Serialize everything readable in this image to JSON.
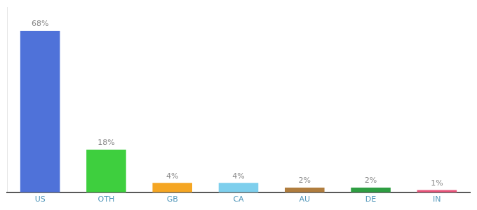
{
  "chart_data": {
    "type": "bar",
    "categories": [
      "US",
      "OTH",
      "GB",
      "CA",
      "AU",
      "DE",
      "IN"
    ],
    "values": [
      68,
      18,
      4,
      4,
      2,
      2,
      1
    ],
    "value_labels": [
      "68%",
      "18%",
      "4%",
      "4%",
      "2%",
      "2%",
      "1%"
    ],
    "data_labels": true,
    "colors": [
      "#4f72d9",
      "#3ecf3e",
      "#f5a623",
      "#7ecfed",
      "#b07d3e",
      "#2e9e42",
      "#e8557a"
    ],
    "ylim": [
      0,
      78
    ],
    "tick_labels": "x",
    "grid": false,
    "legend": false
  }
}
